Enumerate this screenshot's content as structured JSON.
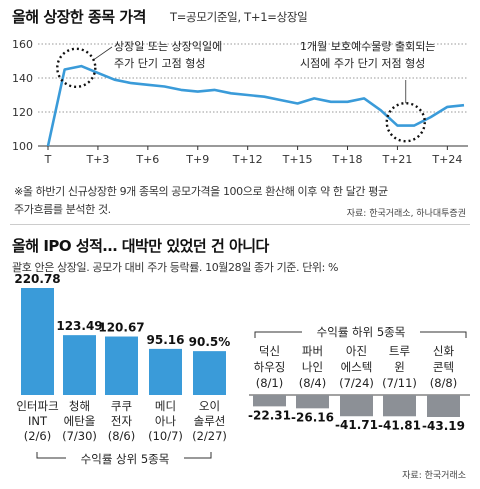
{
  "colors": {
    "line": "#3a9bd9",
    "bar_top": "#3a9bd9",
    "bar_bottom": "#8c9096",
    "text": "#222222",
    "grid": "#777777"
  },
  "chart1": {
    "title": "올해 상장한 종목 가격",
    "subtitle": "T=공모기준일, T+1=상장일",
    "annotation1": [
      "상장일 또는 상장익일에",
      "주가 단기 고점 형성"
    ],
    "annotation2": [
      "1개월 보호예수물량 출회되는",
      "시점에 주가 단기 저점 형성"
    ],
    "note_line1": "※올 하반기 신규상장한 9개 종목의 공모가격을 100으로 환산해 이후 약 한 달간 평균",
    "note_line2": "주가흐름를 분석한 것.",
    "source": "자료: 한국거래소, 하나대투증권"
  },
  "chart2": {
    "title": "올해 IPO 성적… 대박만 있었던 건 아니다",
    "subtitle": "괄호 안은 상장일. 공모가 대비 주가 등락률. 10월28일 종가 기준. 단위: %",
    "top_group_label": "수익률 상위 5종목",
    "bottom_group_label": "수익률 하위 5종목",
    "source": "자료: 한국거래소"
  },
  "chart_data": [
    {
      "type": "line",
      "title": "올해 상장한 종목 가격",
      "x_ticks": [
        "T",
        "T+3",
        "T+6",
        "T+9",
        "T+12",
        "T+15",
        "T+18",
        "T+21",
        "T+24"
      ],
      "y_ticks": [
        100,
        120,
        140,
        160
      ],
      "ylim": [
        100,
        160
      ],
      "xlim": [
        0,
        25
      ],
      "grid": true,
      "series": [
        {
          "x": [
            0,
            1,
            2,
            3,
            4,
            5,
            6,
            7,
            8,
            9,
            10,
            11,
            12,
            13,
            14,
            15,
            16,
            17,
            18,
            19,
            20,
            21,
            22,
            23,
            24,
            25
          ],
          "y": [
            100,
            145,
            147,
            143,
            139,
            137,
            136,
            135,
            133,
            132,
            133,
            131,
            130,
            129,
            127,
            125,
            128,
            126,
            126,
            128,
            121,
            112,
            112,
            117,
            123,
            124
          ]
        }
      ]
    },
    {
      "type": "bar",
      "title": "올해 IPO 성적… 대박만 있었던 건 아니다",
      "ylabel": "%",
      "series": [
        {
          "name": "수익률 상위 5종목",
          "categories": [
            [
              "인터파크",
              "INT",
              "(2/6)"
            ],
            [
              "청해",
              "에탄올",
              "(7/30)"
            ],
            [
              "쿠쿠",
              "전자",
              "(8/6)"
            ],
            [
              "메디",
              "아나",
              "(10/7)"
            ],
            [
              "오이",
              "솔루션",
              "(2/27)"
            ]
          ],
          "labels": [
            "220.78",
            "123.49",
            "120.67",
            "95.16",
            "90.5%"
          ],
          "values": [
            220.78,
            123.49,
            120.67,
            95.16,
            90.5
          ]
        },
        {
          "name": "수익률 하위 5종목",
          "categories": [
            [
              "덕신",
              "하우징",
              "(8/1)"
            ],
            [
              "파버",
              "나인",
              "(8/4)"
            ],
            [
              "아진",
              "에스텍",
              "(7/24)"
            ],
            [
              "트루",
              "윈",
              "(7/11)"
            ],
            [
              "신화",
              "콘텍",
              "(8/8)"
            ]
          ],
          "labels": [
            "-22.31",
            "-26.16",
            "-41.71",
            "-41.81",
            "-43.19"
          ],
          "values": [
            -22.31,
            -26.16,
            -41.71,
            -41.81,
            -43.19
          ]
        }
      ]
    }
  ]
}
